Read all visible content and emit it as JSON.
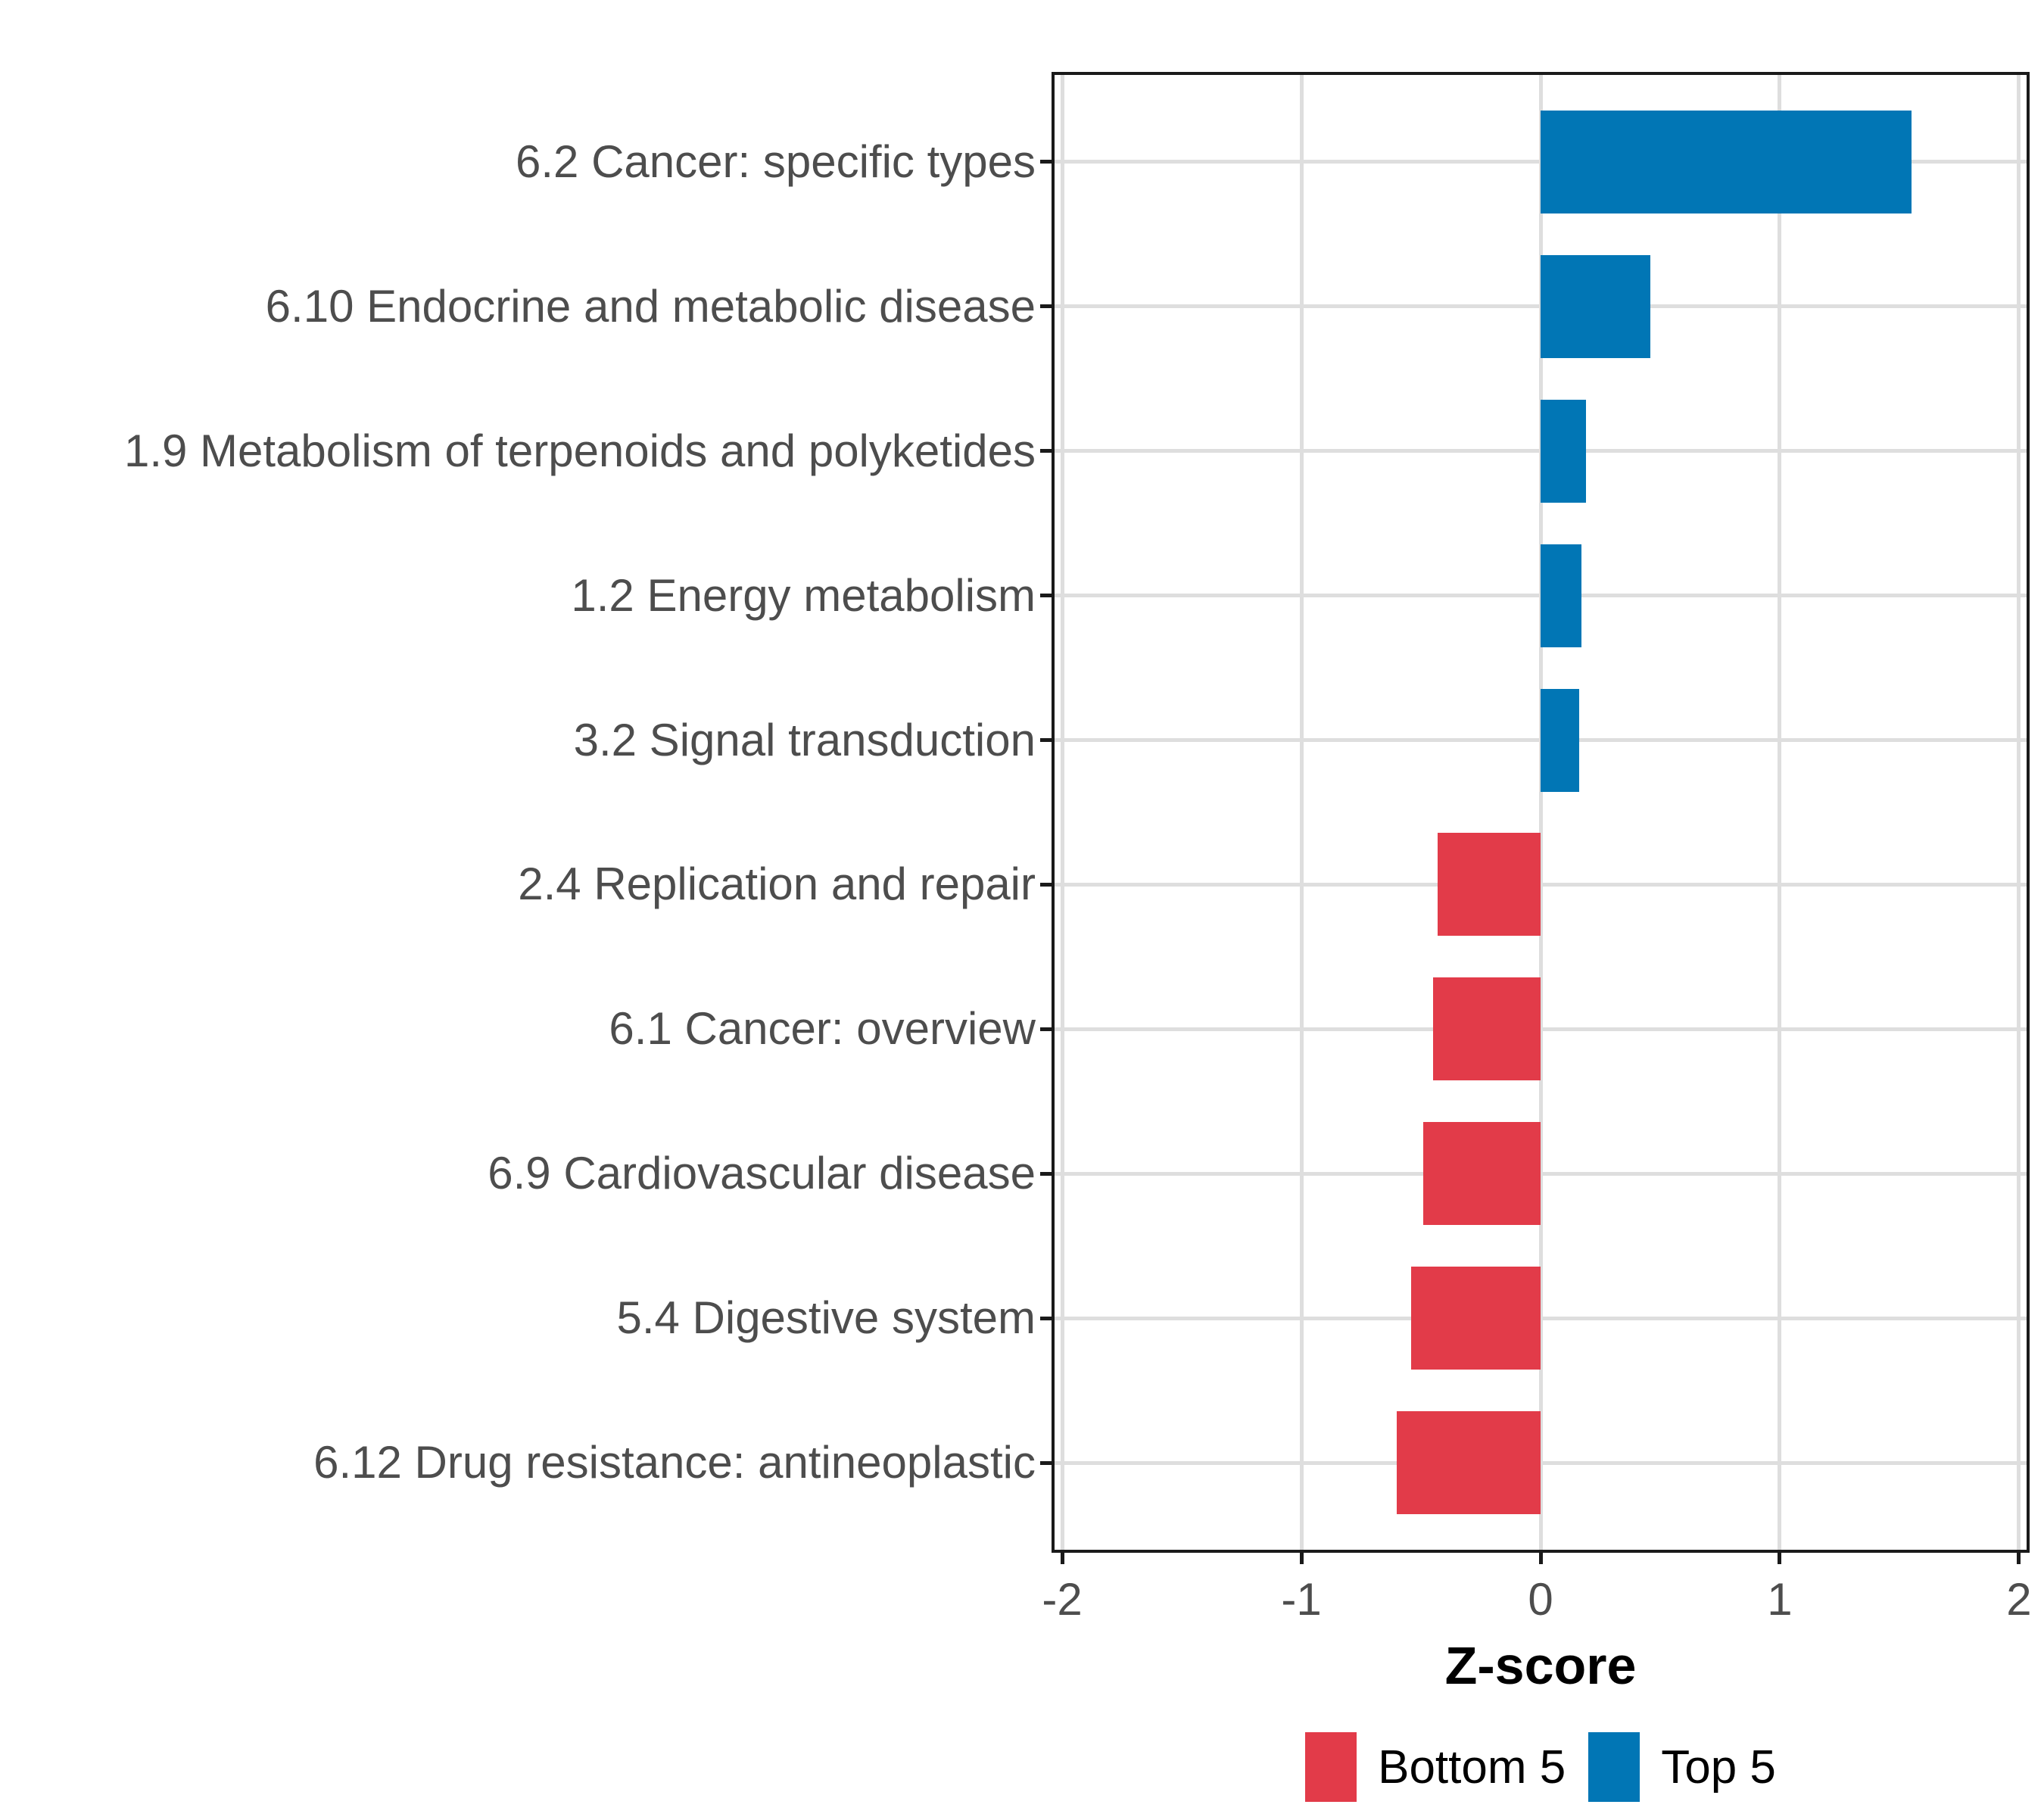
{
  "chart_data": {
    "type": "bar",
    "orientation": "horizontal",
    "title": "",
    "xlabel": "Z-score",
    "ylabel": "",
    "categories": [
      "6.2 Cancer: specific types",
      "6.10 Endocrine and metabolic disease",
      "1.9 Metabolism of terpenoids and polyketides",
      "1.2 Energy metabolism",
      "3.2 Signal transduction",
      "2.4 Replication and repair",
      "6.1 Cancer: overview",
      "6.9 Cardiovascular disease",
      "5.4 Digestive system",
      "6.12 Drug resistance: antineoplastic"
    ],
    "values": [
      1.55,
      0.46,
      0.19,
      0.17,
      0.16,
      -0.43,
      -0.45,
      -0.49,
      -0.54,
      -0.6
    ],
    "groups": [
      "Top 5",
      "Top 5",
      "Top 5",
      "Top 5",
      "Top 5",
      "Bottom 5",
      "Bottom 5",
      "Bottom 5",
      "Bottom 5",
      "Bottom 5"
    ],
    "xlim": [
      -2.032,
      2.032
    ],
    "x_ticks": [
      "-2",
      "-1",
      "0",
      "1",
      "2"
    ],
    "x_tick_values": [
      -2,
      -1,
      0,
      1,
      2
    ],
    "grid": "major-only",
    "legend_position": "bottom",
    "legend": [
      {
        "label": "Bottom 5",
        "color": "#E23B49"
      },
      {
        "label": "Top 5",
        "color": "#0176B5"
      }
    ]
  },
  "style": {
    "background": "#FFFFFF",
    "panel_border_color": "#1A1A1A",
    "grid_color": "#DEDEDE",
    "tick_color": "#1A1A1A",
    "axis_text_color": "#4D4D4D",
    "axis_title_color": "#000000",
    "legend_text_color": "#000000",
    "bar_color_top": "#0176B5",
    "bar_color_bottom": "#E23B49"
  }
}
